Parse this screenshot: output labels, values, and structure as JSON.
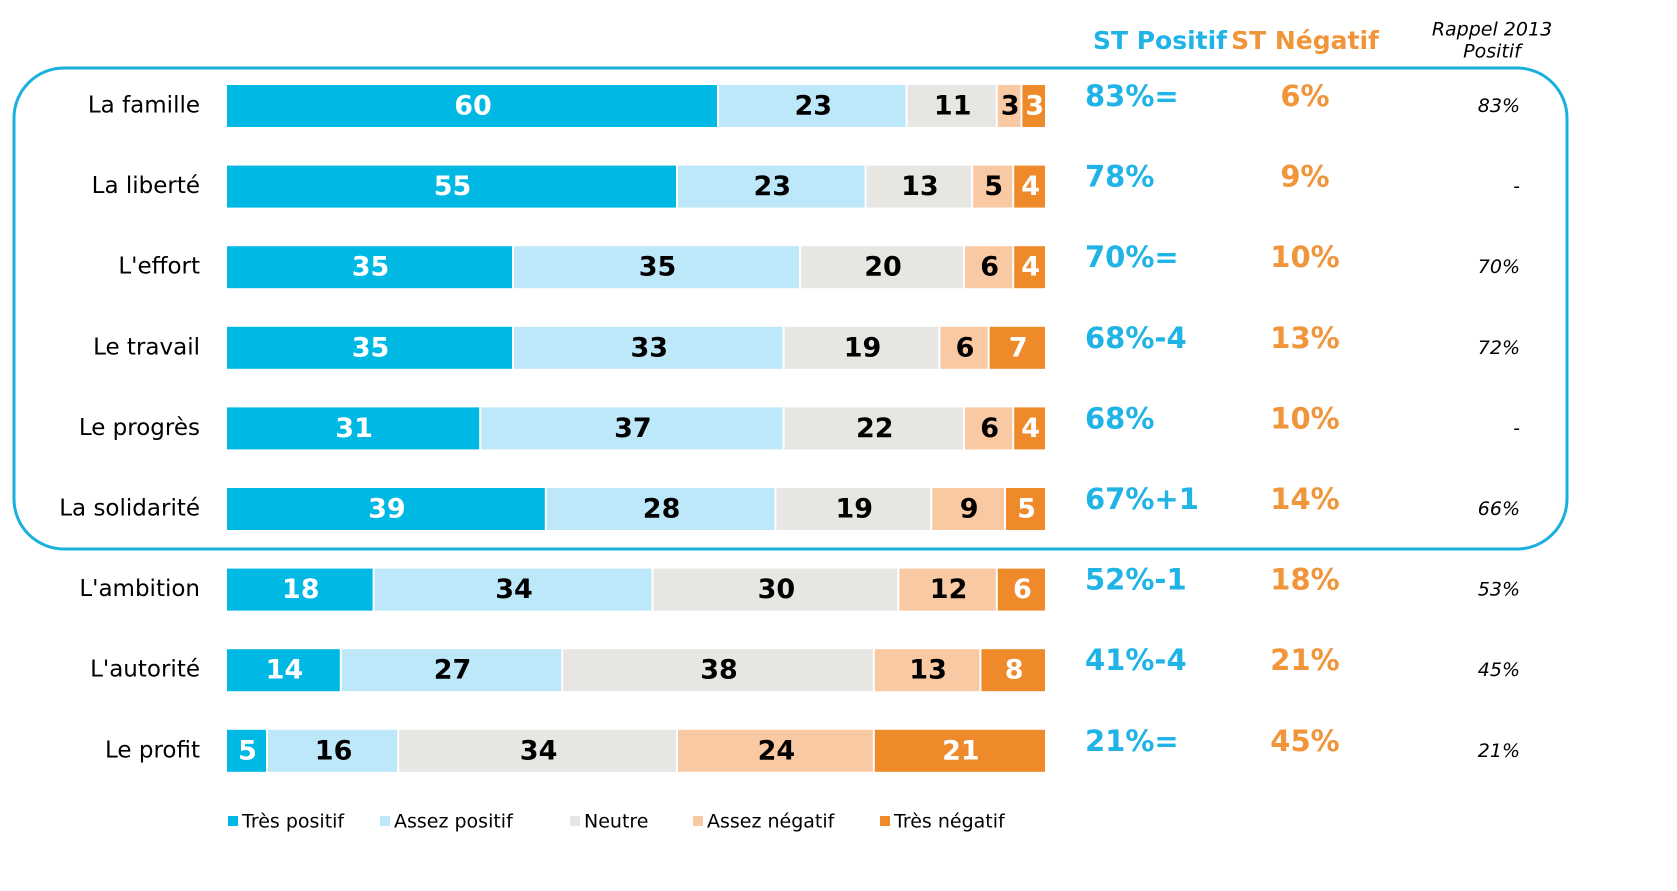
{
  "chart_data": {
    "type": "stacked_bar_horizontal",
    "categories": [
      "La famille",
      "La liberté",
      "L'effort",
      "Le travail",
      "Le progrès",
      "La solidarité",
      "L'ambition",
      "L'autorité",
      "Le profit"
    ],
    "series": [
      {
        "name": "Très positif",
        "color": "#00b8e4",
        "label_color": "#ffffff",
        "values": [
          60,
          55,
          35,
          35,
          31,
          39,
          18,
          14,
          5
        ]
      },
      {
        "name": "Assez positif",
        "color": "#bde8f9",
        "label_color": "#000000",
        "values": [
          23,
          23,
          35,
          33,
          37,
          28,
          34,
          27,
          16
        ]
      },
      {
        "name": "Neutre",
        "color": "#e8e6e3",
        "label_color": "#000000",
        "values": [
          11,
          13,
          20,
          19,
          22,
          19,
          30,
          38,
          34
        ]
      },
      {
        "name": "Assez négatif",
        "color": "#f8c9a3",
        "label_color": "#000000",
        "values": [
          3,
          5,
          6,
          6,
          6,
          9,
          12,
          13,
          24
        ]
      },
      {
        "name": "Très négatif",
        "color": "#ef8a2a",
        "label_color": "#ffffff",
        "values": [
          3,
          4,
          4,
          7,
          4,
          5,
          6,
          8,
          21
        ]
      }
    ],
    "xlim": [
      0,
      100
    ],
    "columns": [
      {
        "header": "ST Positif",
        "color": "#1fb3e6",
        "values": [
          83,
          78,
          70,
          68,
          68,
          67,
          52,
          41,
          21
        ],
        "value_labels": [
          "83%",
          "78%",
          "70%",
          "68%",
          "68%",
          "67%",
          "52%",
          "41%",
          "21%"
        ],
        "evolution": [
          "=",
          null,
          "=",
          "-4",
          null,
          "+1",
          "-1",
          "-4",
          "="
        ]
      },
      {
        "header": "ST Négatif",
        "color": "#f0953a",
        "values": [
          6,
          9,
          10,
          13,
          10,
          14,
          18,
          21,
          45
        ],
        "value_labels": [
          "6%",
          "9%",
          "10%",
          "13%",
          "10%",
          "14%",
          "18%",
          "21%",
          "45%"
        ]
      },
      {
        "header": [
          "Rappel  2013",
          "Positif"
        ],
        "color": "#000000",
        "values": [
          83,
          null,
          70,
          72,
          null,
          66,
          53,
          45,
          21
        ],
        "value_labels": [
          "83%",
          "-",
          "70%",
          "72%",
          "-",
          "66%",
          "53%",
          "45%",
          "21%"
        ]
      }
    ]
  }
}
